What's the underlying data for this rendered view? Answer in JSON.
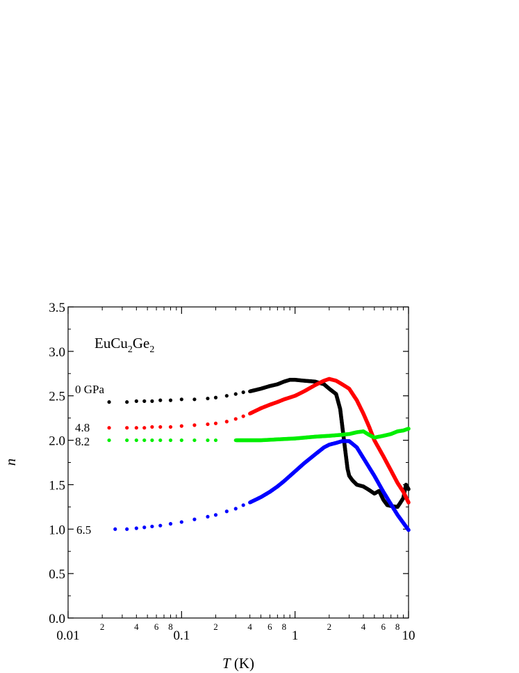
{
  "chart_data": {
    "type": "scatter",
    "title": "",
    "annotation": {
      "main": "EuCu",
      "sub1": "2",
      "mid": "Ge",
      "sub2": "2"
    },
    "xlabel": {
      "italic": "T",
      "rest": " (K)"
    },
    "ylabel": "n",
    "xscale": "log",
    "xlim": [
      0.01,
      10
    ],
    "ylim": [
      0.0,
      3.5
    ],
    "x_major_ticks": [
      0.01,
      0.1,
      1,
      10
    ],
    "x_major_tick_labels": [
      "0.01",
      "0.1",
      "1",
      "10"
    ],
    "x_minor_tick_labels": [
      {
        "value": 0.02,
        "label": "2"
      },
      {
        "value": 0.04,
        "label": "4"
      },
      {
        "value": 0.06,
        "label": "6"
      },
      {
        "value": 0.08,
        "label": "8"
      },
      {
        "value": 0.2,
        "label": "2"
      },
      {
        "value": 0.4,
        "label": "4"
      },
      {
        "value": 0.6,
        "label": "6"
      },
      {
        "value": 0.8,
        "label": "8"
      },
      {
        "value": 2,
        "label": "2"
      },
      {
        "value": 4,
        "label": "4"
      },
      {
        "value": 6,
        "label": "6"
      },
      {
        "value": 8,
        "label": "8"
      }
    ],
    "y_ticks": [
      0.0,
      0.5,
      1.0,
      1.5,
      2.0,
      2.5,
      3.0,
      3.5
    ],
    "y_tick_labels": [
      "0.0",
      "0.5",
      "1.0",
      "1.5",
      "2.0",
      "2.5",
      "3.0",
      "3.5"
    ],
    "grid": false,
    "legend": "none",
    "series": [
      {
        "name": "0 GPa",
        "label_text": "0 GPa",
        "color": "#000000",
        "x": [
          0.023,
          0.033,
          0.04,
          0.047,
          0.055,
          0.065,
          0.08,
          0.1,
          0.13,
          0.17,
          0.2,
          0.25,
          0.3,
          0.35,
          0.4,
          0.5,
          0.6,
          0.7,
          0.8,
          0.9,
          1.0,
          1.2,
          1.5,
          1.8,
          2.0,
          2.3,
          2.5,
          2.7,
          2.9,
          3.0,
          3.2,
          3.5,
          4.0,
          4.5,
          5.0,
          5.5,
          6.0,
          6.5,
          7.0,
          8.0,
          8.5,
          9.0,
          9.5,
          10.0
        ],
        "y": [
          2.43,
          2.43,
          2.44,
          2.44,
          2.44,
          2.45,
          2.45,
          2.46,
          2.46,
          2.47,
          2.48,
          2.5,
          2.52,
          2.54,
          2.55,
          2.58,
          2.61,
          2.63,
          2.66,
          2.68,
          2.68,
          2.67,
          2.66,
          2.63,
          2.58,
          2.52,
          2.35,
          2.0,
          1.68,
          1.6,
          1.55,
          1.5,
          1.48,
          1.44,
          1.4,
          1.43,
          1.33,
          1.27,
          1.26,
          1.25,
          1.3,
          1.35,
          1.5,
          1.45
        ]
      },
      {
        "name": "4.8",
        "label_text": "4.8",
        "color": "#ff0000",
        "x": [
          0.023,
          0.033,
          0.04,
          0.047,
          0.055,
          0.065,
          0.08,
          0.1,
          0.13,
          0.17,
          0.2,
          0.25,
          0.3,
          0.35,
          0.4,
          0.5,
          0.6,
          0.7,
          0.8,
          1.0,
          1.2,
          1.5,
          1.8,
          2.0,
          2.3,
          2.6,
          3.0,
          3.5,
          4.0,
          4.5,
          5.0,
          6.0,
          7.0,
          8.0,
          9.0,
          10.0
        ],
        "y": [
          2.14,
          2.14,
          2.14,
          2.14,
          2.15,
          2.15,
          2.15,
          2.16,
          2.17,
          2.18,
          2.19,
          2.21,
          2.24,
          2.27,
          2.3,
          2.36,
          2.4,
          2.43,
          2.46,
          2.5,
          2.55,
          2.62,
          2.67,
          2.69,
          2.67,
          2.63,
          2.58,
          2.45,
          2.3,
          2.15,
          2.0,
          1.82,
          1.66,
          1.52,
          1.42,
          1.3
        ]
      },
      {
        "name": "8.2",
        "label_text": "8.2",
        "color": "#00ee00",
        "x": [
          0.023,
          0.033,
          0.04,
          0.047,
          0.055,
          0.065,
          0.08,
          0.1,
          0.13,
          0.17,
          0.2,
          0.3,
          0.5,
          0.7,
          1.0,
          1.5,
          2.0,
          2.5,
          3.0,
          3.5,
          4.0,
          4.5,
          5.0,
          6.0,
          7.0,
          8.0,
          9.0,
          10.0
        ],
        "y": [
          2.0,
          2.0,
          2.0,
          2.0,
          2.0,
          2.0,
          2.0,
          2.0,
          2.0,
          2.0,
          2.0,
          2.0,
          2.0,
          2.01,
          2.02,
          2.04,
          2.05,
          2.06,
          2.07,
          2.09,
          2.1,
          2.06,
          2.03,
          2.05,
          2.07,
          2.1,
          2.11,
          2.13
        ]
      },
      {
        "name": "6.5",
        "label_text": "6.5",
        "color": "#0000ff",
        "x": [
          0.026,
          0.033,
          0.04,
          0.047,
          0.055,
          0.065,
          0.08,
          0.1,
          0.13,
          0.17,
          0.2,
          0.25,
          0.3,
          0.35,
          0.4,
          0.5,
          0.6,
          0.7,
          0.8,
          1.0,
          1.2,
          1.5,
          1.8,
          2.0,
          2.3,
          2.6,
          3.0,
          3.5,
          4.0,
          5.0,
          6.0,
          7.0,
          8.0,
          9.0,
          10.0
        ],
        "y": [
          1.0,
          1.0,
          1.01,
          1.02,
          1.03,
          1.04,
          1.06,
          1.08,
          1.11,
          1.14,
          1.16,
          1.2,
          1.23,
          1.27,
          1.3,
          1.36,
          1.42,
          1.48,
          1.54,
          1.65,
          1.74,
          1.84,
          1.92,
          1.95,
          1.97,
          1.99,
          1.99,
          1.92,
          1.8,
          1.6,
          1.42,
          1.28,
          1.16,
          1.07,
          0.99
        ]
      }
    ]
  }
}
